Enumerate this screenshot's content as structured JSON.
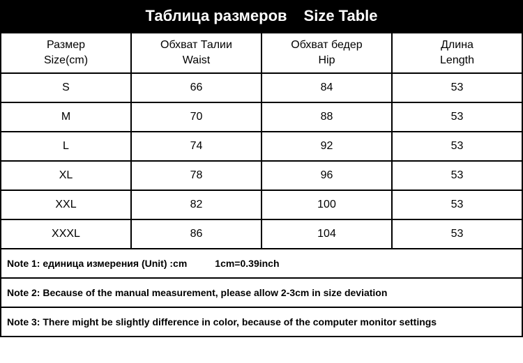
{
  "title": {
    "ru": "Таблица размеров",
    "en": "Size Table"
  },
  "table": {
    "columns": [
      {
        "ru": "Размер",
        "en": "Size(cm)"
      },
      {
        "ru": "Обхват Талии",
        "en": "Waist"
      },
      {
        "ru": "Обхват бедер",
        "en": "Hip"
      },
      {
        "ru": "Длина",
        "en": "Length"
      }
    ],
    "rows": [
      {
        "size": "S",
        "waist": "66",
        "hip": "84",
        "length": "53"
      },
      {
        "size": "M",
        "waist": "70",
        "hip": "88",
        "length": "53"
      },
      {
        "size": "L",
        "waist": "74",
        "hip": "92",
        "length": "53"
      },
      {
        "size": "XL",
        "waist": "78",
        "hip": "96",
        "length": "53"
      },
      {
        "size": "XXL",
        "waist": "82",
        "hip": "100",
        "length": "53"
      },
      {
        "size": "XXXL",
        "waist": "86",
        "hip": "104",
        "length": "53"
      }
    ]
  },
  "notes": {
    "n1a": "Note 1: единица измерения (Unit) :cm",
    "n1b": "1cm=0.39inch",
    "n2": "Note 2: Because of the manual measurement, please allow 2-3cm in size deviation",
    "n3": "Note 3: There might be slightly difference in color, because of the computer monitor settings"
  },
  "style": {
    "header_bg": "#000000",
    "header_fg": "#ffffff",
    "border_color": "#000000",
    "body_bg": "#ffffff",
    "text_color": "#000000",
    "title_fontsize": 22,
    "th_fontsize": 16,
    "td_fontsize": 16,
    "note_fontsize": 14
  }
}
